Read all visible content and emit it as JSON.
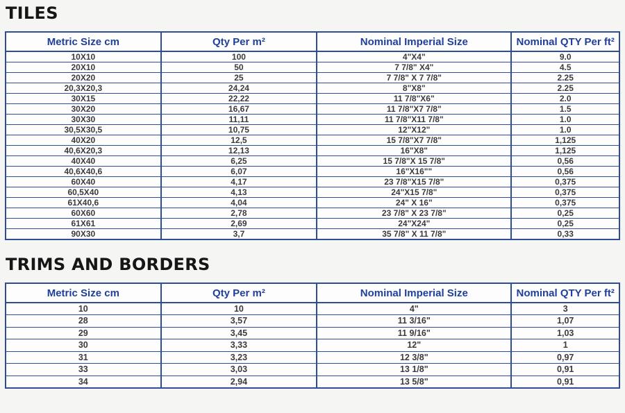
{
  "colors": {
    "page_bg": "#f5f5f4",
    "table_border": "#2e4d98",
    "header_text": "#1f3f9d",
    "cell_text": "#3b3b3d",
    "title_text": "#161616",
    "cell_bg": "#fdfdfd"
  },
  "sections": [
    {
      "title": "TILES",
      "columns": [
        "Metric Size cm",
        "Qty Per m²",
        "Nominal Imperial Size",
        "Nominal QTY Per ft²"
      ],
      "rows": [
        [
          "10X10",
          "100",
          "4\"X4\"",
          "9.0"
        ],
        [
          "20X10",
          "50",
          "7 7/8\" X4\"",
          "4.5"
        ],
        [
          "20X20",
          "25",
          "7 7/8\" X 7 7/8\"",
          "2.25"
        ],
        [
          "20,3X20,3",
          "24,24",
          "8\"X8\"",
          "2.25"
        ],
        [
          "30X15",
          "22,22",
          "11 7/8\"X6\"",
          "2.0"
        ],
        [
          "30X20",
          "16,67",
          "11 7/8\"X7 7/8\"",
          "1.5"
        ],
        [
          "30X30",
          "11,11",
          "11 7/8\"X11 7/8\"",
          "1.0"
        ],
        [
          "30,5X30,5",
          "10,75",
          "12\"X12\"",
          "1.0"
        ],
        [
          "40X20",
          "12,5",
          "15 7/8\"X7 7/8\"",
          "1,125"
        ],
        [
          "40,6X20,3",
          "12,13",
          "16\"X8\"",
          "1,125"
        ],
        [
          "40X40",
          "6,25",
          "15 7/8\"X 15 7/8\"",
          "0,56"
        ],
        [
          "40,6X40,6",
          "6,07",
          "16\"X16\"\"",
          "0,56"
        ],
        [
          "60X40",
          "4,17",
          "23 7/8\"X15 7/8\"",
          "0,375"
        ],
        [
          "60,5X40",
          "4,13",
          "24\"X15 7/8\"",
          "0,375"
        ],
        [
          "61X40,6",
          "4,04",
          "24\" X 16\"",
          "0,375"
        ],
        [
          "60X60",
          "2,78",
          "23 7/8\" X 23 7/8\"",
          "0,25"
        ],
        [
          "61X61",
          "2,69",
          "24\"X24\"",
          "0,25"
        ],
        [
          "90X30",
          "3,7",
          "35 7/8\" X 11 7/8\"",
          "0,33"
        ]
      ]
    },
    {
      "title": "TRIMS AND BORDERS",
      "columns": [
        "Metric Size cm",
        "Qty Per m²",
        "Nominal Imperial Size",
        "Nominal QTY Per ft²"
      ],
      "rows": [
        [
          "10",
          "10",
          "4\"",
          "3"
        ],
        [
          "28",
          "3,57",
          "11 3/16\"",
          "1,07"
        ],
        [
          "29",
          "3,45",
          "11 9/16\"",
          "1,03"
        ],
        [
          "30",
          "3,33",
          "12\"",
          "1"
        ],
        [
          "31",
          "3,23",
          "12 3/8\"",
          "0,97"
        ],
        [
          "33",
          "3,03",
          "13 1/8\"",
          "0,91"
        ],
        [
          "34",
          "2,94",
          "13 5/8\"",
          "0,91"
        ]
      ]
    }
  ]
}
